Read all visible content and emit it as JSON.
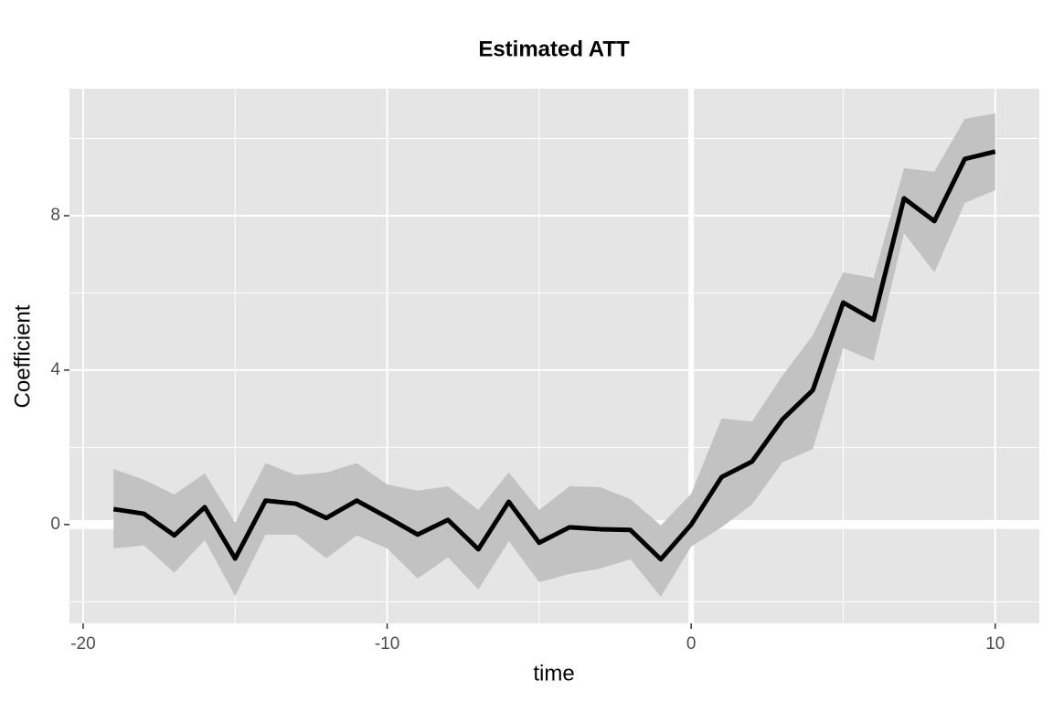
{
  "chart_data": {
    "type": "ribbon-line",
    "title": "Estimated ATT",
    "x_label": "time",
    "y_label": "Coefficient",
    "x": [
      -19,
      -18,
      -17,
      -16,
      -15,
      -14,
      -13,
      -12,
      -11,
      -10,
      -9,
      -8,
      -7,
      -6,
      -5,
      -4,
      -3,
      -2,
      -1,
      0,
      1,
      2,
      3,
      4,
      5,
      6,
      7,
      8,
      9,
      10
    ],
    "values": [
      0.4,
      0.28,
      -0.28,
      0.45,
      -0.88,
      0.62,
      0.54,
      0.17,
      0.62,
      0.19,
      -0.26,
      0.12,
      -0.64,
      0.59,
      -0.47,
      -0.07,
      -0.12,
      -0.14,
      -0.9,
      0,
      1.23,
      1.63,
      2.72,
      3.48,
      5.75,
      5.3,
      8.45,
      7.86,
      9.47,
      9.66
    ],
    "lower": [
      -0.62,
      -0.54,
      -1.25,
      -0.4,
      -1.85,
      -0.26,
      -0.26,
      -0.88,
      -0.28,
      -0.62,
      -1.4,
      -0.85,
      -1.68,
      -0.43,
      -1.49,
      -1.28,
      -1.14,
      -0.9,
      -1.87,
      -0.57,
      -0.07,
      0.52,
      1.61,
      1.96,
      4.57,
      4.24,
      7.55,
      6.53,
      8.33,
      8.66
    ],
    "upper": [
      1.44,
      1.16,
      0.78,
      1.33,
      0.05,
      1.59,
      1.28,
      1.35,
      1.59,
      1.04,
      0.88,
      0.99,
      0.38,
      1.35,
      0.38,
      0.99,
      0.97,
      0.66,
      -0.02,
      0.8,
      2.75,
      2.67,
      3.86,
      4.9,
      6.53,
      6.39,
      9.23,
      9.14,
      10.51,
      10.65
    ],
    "color": "#000000",
    "ribbon_color": "#c2c2c2",
    "xlim": [
      -20.45,
      11.45
    ],
    "ylim": [
      -2.56,
      11.29
    ],
    "xticks": [
      -20,
      -10,
      0,
      10
    ],
    "yticks": [
      0,
      4,
      8
    ],
    "hline": 0,
    "vline": 0,
    "grid": true
  }
}
